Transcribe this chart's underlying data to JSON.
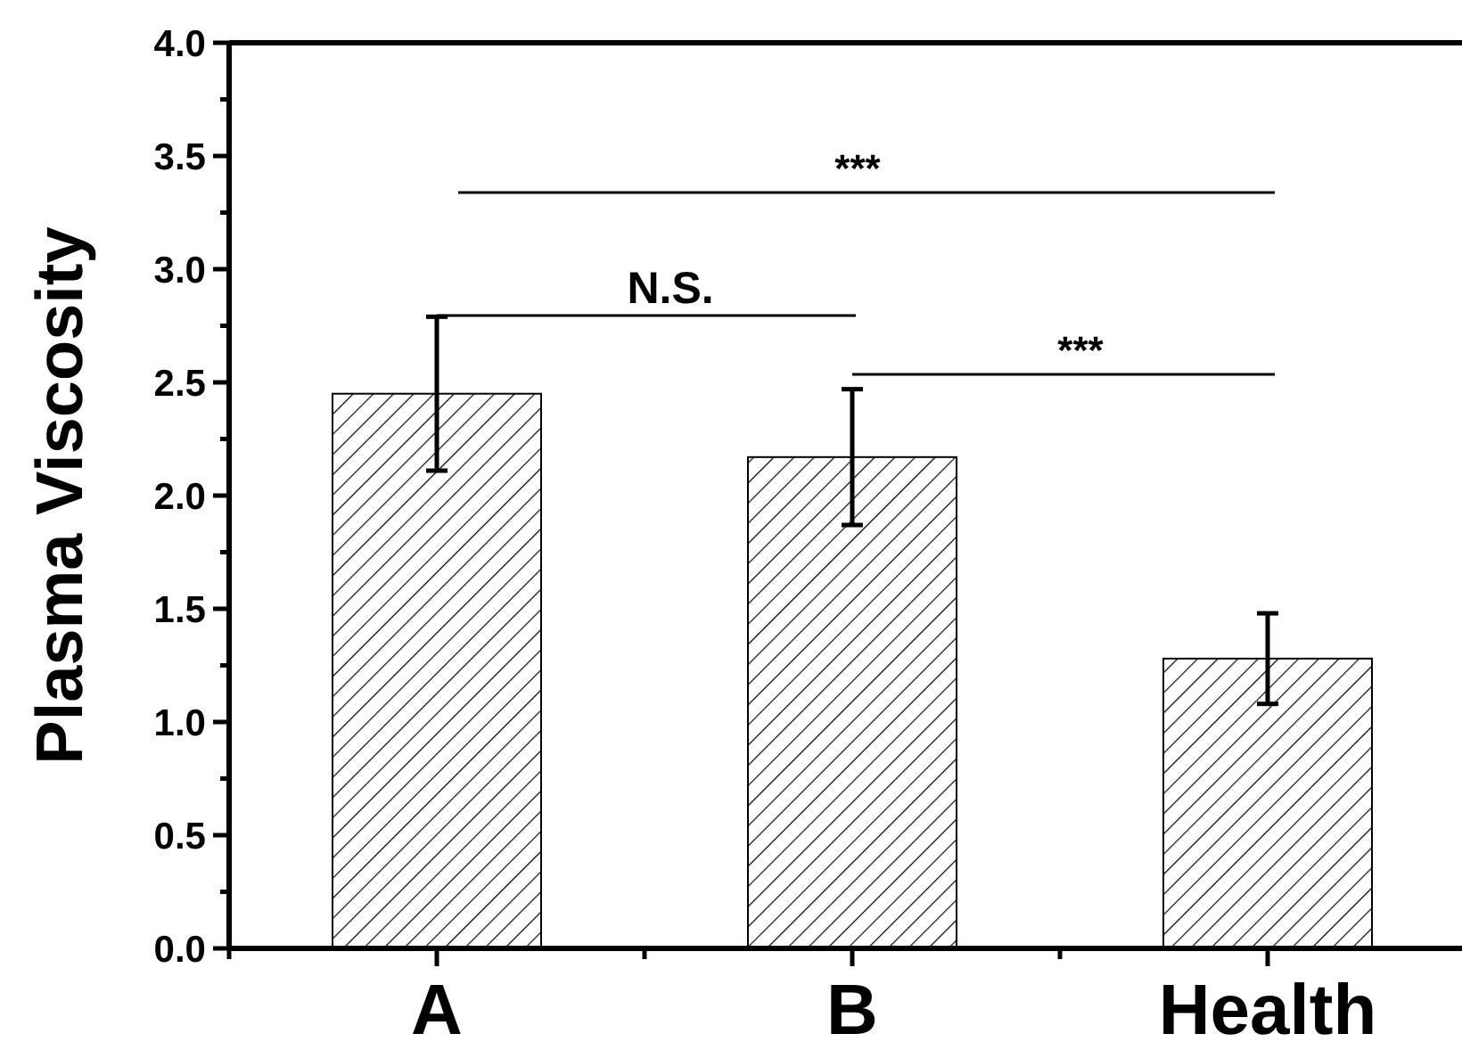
{
  "chart_data": {
    "type": "bar",
    "ylabel": "Plasma Viscosity",
    "categories": [
      "A",
      "B",
      "Health"
    ],
    "values": [
      2.45,
      2.17,
      1.28
    ],
    "errors": [
      0.34,
      0.3,
      0.2
    ],
    "color": "#000000",
    "ylim": [
      0,
      4
    ],
    "yticks": [
      {
        "value": 0,
        "label": "0.0"
      },
      {
        "value": 0.25,
        "label": null
      },
      {
        "value": 0.5,
        "label": "0.5"
      },
      {
        "value": 0.75,
        "label": null
      },
      {
        "value": 1,
        "label": "1.0"
      },
      {
        "value": 1.25,
        "label": null
      },
      {
        "value": 1.5,
        "label": "1.5"
      },
      {
        "value": 1.75,
        "label": null
      },
      {
        "value": 2,
        "label": "2.0"
      },
      {
        "value": 2.25,
        "label": null
      },
      {
        "value": 2.5,
        "label": "2.5"
      },
      {
        "value": 2.75,
        "label": null
      },
      {
        "value": 3,
        "label": "3.0"
      },
      {
        "value": 3.25,
        "label": null
      },
      {
        "value": 3.5,
        "label": "3.5"
      },
      {
        "value": 3.75,
        "label": null
      },
      {
        "value": 4,
        "label": "4.0"
      }
    ],
    "annotations": [
      "***",
      "N.S.",
      "***"
    ],
    "grid": false
  }
}
